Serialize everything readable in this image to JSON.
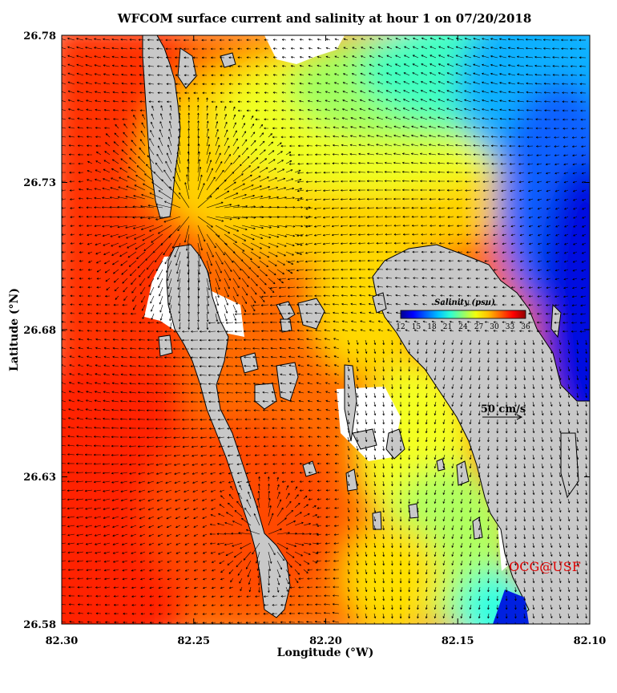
{
  "title": "WFCOM surface current and salinity at hour 1 on 07/20/2018",
  "x_axis": {
    "label": "Longitude (°W)",
    "ticks": [
      "82.30",
      "82.25",
      "82.20",
      "82.15",
      "82.10"
    ]
  },
  "y_axis": {
    "label": "Latitude (°N)",
    "ticks": [
      "26.78",
      "26.73",
      "26.68",
      "26.63",
      "26.58"
    ]
  },
  "colorbar": {
    "title": "Salinity (psu)",
    "ticks": [
      "12",
      "15",
      "18",
      "21",
      "24",
      "27",
      "30",
      "33",
      "36"
    ],
    "colors": [
      "#00008f",
      "#0000ff",
      "#0060ff",
      "#00c0ff",
      "#30ffd0",
      "#90ff70",
      "#f0ff10",
      "#ffc000",
      "#ff6000",
      "#ff0000",
      "#8f0000"
    ]
  },
  "scale_vector": {
    "label": "50 cm/s"
  },
  "credit": "OCG@USF",
  "colors": {
    "land": "#c8c8c8",
    "no_data": "#ffffff",
    "credit": "#e00000"
  }
}
